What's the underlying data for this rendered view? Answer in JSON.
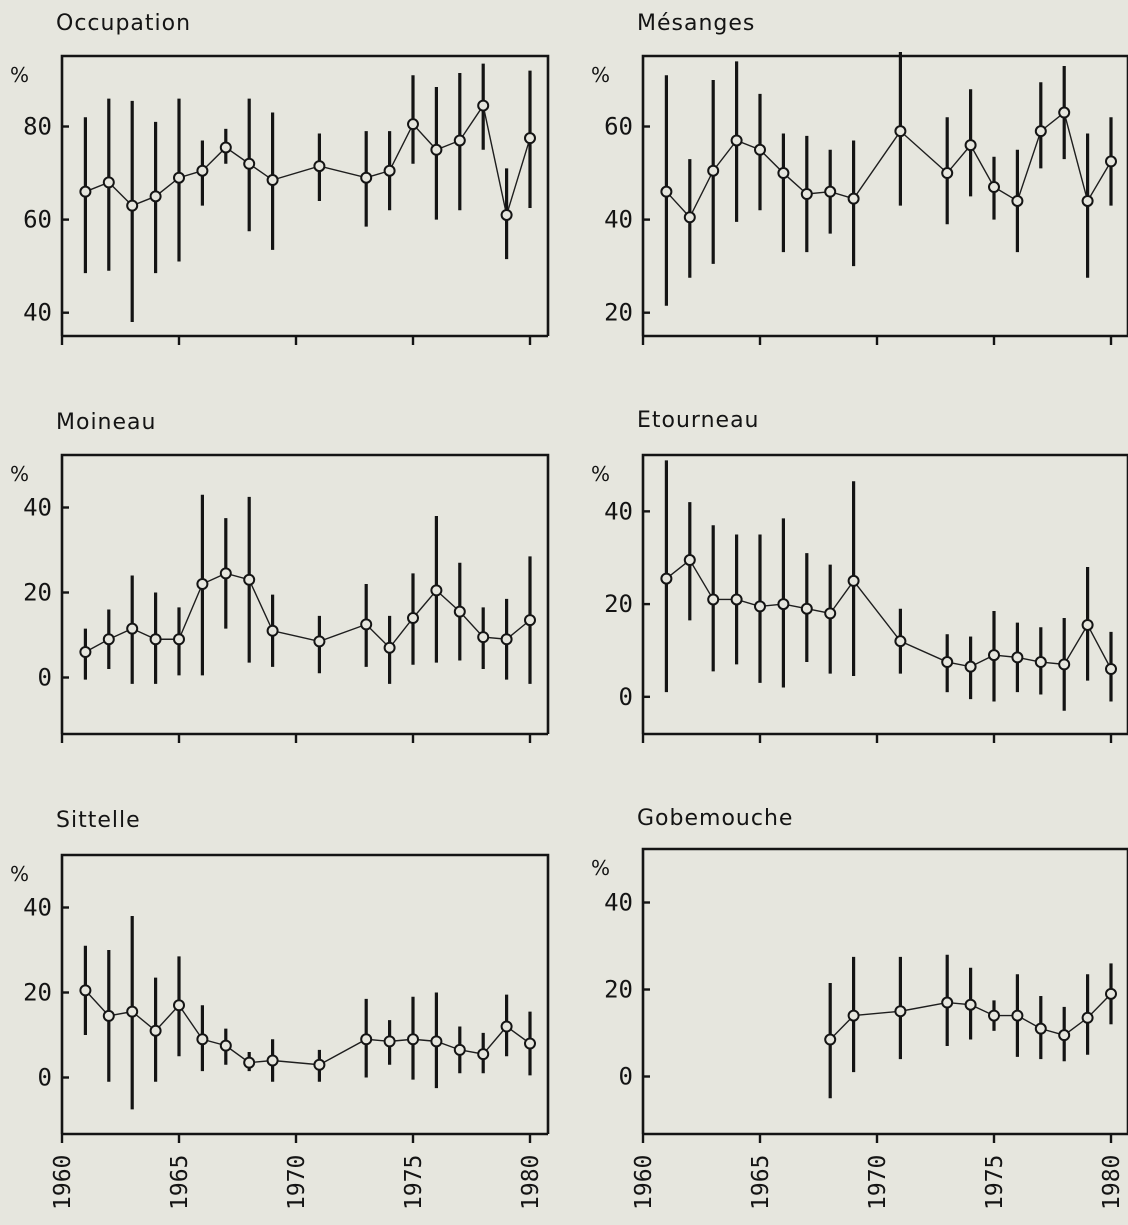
{
  "colors": {
    "background": "#e6e6de",
    "ink": "#141414"
  },
  "x_axis": {
    "range": [
      1960,
      1980
    ],
    "tick_labels": [
      "1960",
      "1965",
      "1970",
      "1975",
      "1980"
    ]
  },
  "chart_data": [
    {
      "type": "line",
      "title": "Occupation",
      "unit": "%",
      "ylim": [
        38,
        93
      ],
      "ytick_labels": [
        "40",
        "60",
        "80"
      ],
      "x": [
        1961,
        1962,
        1963,
        1964,
        1965,
        1966,
        1967,
        1968,
        1969,
        1971,
        1973,
        1974,
        1975,
        1976,
        1977,
        1978,
        1979,
        1980
      ],
      "y": [
        66,
        68,
        63,
        65,
        69,
        70.5,
        75.5,
        72,
        68.5,
        71.5,
        69,
        70.5,
        80.5,
        75,
        77,
        84.5,
        61,
        77.5
      ],
      "err_low": [
        48.5,
        49,
        38,
        48.5,
        51,
        63,
        72,
        57.5,
        53.5,
        64,
        58.5,
        62,
        72,
        60,
        62,
        75,
        51.5,
        62.5
      ],
      "err_high": [
        82,
        86,
        85.5,
        81,
        86,
        77,
        79.5,
        86,
        83,
        78.5,
        79,
        79,
        91,
        88.5,
        91.5,
        93.5,
        71,
        92
      ]
    },
    {
      "type": "line",
      "title": "Mésanges",
      "unit": "%",
      "ylim": [
        18,
        73
      ],
      "ytick_labels": [
        "20",
        "40",
        "60"
      ],
      "x": [
        1961,
        1962,
        1963,
        1964,
        1965,
        1966,
        1967,
        1968,
        1969,
        1971,
        1973,
        1974,
        1975,
        1976,
        1977,
        1978,
        1979,
        1980
      ],
      "y": [
        46,
        40.5,
        50.5,
        57,
        55,
        50,
        45.5,
        46,
        44.5,
        59,
        50,
        56,
        47,
        44,
        59,
        63,
        44,
        52.5
      ],
      "err_low": [
        21.5,
        27.5,
        30.5,
        39.5,
        42,
        33,
        33,
        37,
        30,
        43,
        39,
        45,
        40,
        33,
        51,
        53,
        27.5,
        43
      ],
      "err_high": [
        71,
        53,
        70,
        74,
        67,
        58.5,
        58,
        55,
        57,
        76,
        62,
        68,
        53.5,
        55,
        69.5,
        73,
        58.5,
        62
      ]
    },
    {
      "type": "line",
      "title": "Moineau",
      "unit": "%",
      "ylim": [
        -10,
        50
      ],
      "ytick_labels": [
        "0",
        "20",
        "40"
      ],
      "x": [
        1961,
        1962,
        1963,
        1964,
        1965,
        1966,
        1967,
        1968,
        1969,
        1971,
        1973,
        1974,
        1975,
        1976,
        1977,
        1978,
        1979,
        1980
      ],
      "y": [
        6,
        9,
        11.5,
        9,
        9,
        22,
        24.5,
        23,
        11,
        8.5,
        12.5,
        7,
        14,
        20.5,
        15.5,
        9.5,
        9,
        13.5
      ],
      "err_low": [
        -0.5,
        2,
        -1.5,
        -1.5,
        0.5,
        0.5,
        11.5,
        3.5,
        2.5,
        1,
        2.5,
        -1.5,
        3,
        3.5,
        4,
        2,
        -0.5,
        -1.5
      ],
      "err_high": [
        11.5,
        16,
        24,
        20,
        16.5,
        43,
        37.5,
        42.5,
        19.5,
        14.5,
        22,
        14.5,
        24.5,
        38,
        27,
        16.5,
        18.5,
        28.5
      ]
    },
    {
      "type": "line",
      "title": "Etourneau",
      "unit": "%",
      "ylim": [
        -5,
        50
      ],
      "ytick_labels": [
        "0",
        "20",
        "40"
      ],
      "x": [
        1961,
        1962,
        1963,
        1964,
        1965,
        1966,
        1967,
        1968,
        1969,
        1971,
        1973,
        1974,
        1975,
        1976,
        1977,
        1978,
        1979,
        1980
      ],
      "y": [
        25.5,
        29.5,
        21,
        21,
        19.5,
        20,
        19,
        18,
        25,
        12,
        7.5,
        6.5,
        9,
        8.5,
        7.5,
        7,
        15.5,
        6
      ],
      "err_low": [
        1,
        16.5,
        5.5,
        7,
        3,
        2,
        7.5,
        5,
        4.5,
        5,
        1,
        -0.5,
        -1,
        1,
        0.5,
        -3,
        3.5,
        -1
      ],
      "err_high": [
        51,
        42,
        37,
        35,
        35,
        38.5,
        31,
        28.5,
        46.5,
        19,
        13.5,
        13,
        18.5,
        16,
        15,
        17,
        28,
        14
      ]
    },
    {
      "type": "line",
      "title": "Sittelle",
      "unit": "%",
      "ylim": [
        -10,
        50
      ],
      "ytick_labels": [
        "0",
        "20",
        "40"
      ],
      "x": [
        1961,
        1962,
        1963,
        1964,
        1965,
        1966,
        1967,
        1968,
        1969,
        1971,
        1973,
        1974,
        1975,
        1976,
        1977,
        1978,
        1979,
        1980
      ],
      "y": [
        20.5,
        14.5,
        15.5,
        11,
        17,
        9,
        7.5,
        3.5,
        4,
        3,
        9,
        8.5,
        9,
        8.5,
        6.5,
        5.5,
        12,
        8
      ],
      "err_low": [
        10,
        -1,
        -7.5,
        -1,
        5,
        1.5,
        3,
        1.5,
        -1,
        -1,
        0,
        3,
        -0.5,
        -2.5,
        1,
        1,
        5,
        0.5
      ],
      "err_high": [
        31,
        30,
        38,
        23.5,
        28.5,
        17,
        11.5,
        6,
        9,
        6.5,
        18.5,
        13.5,
        19,
        20,
        12,
        10.5,
        19.5,
        15.5
      ]
    },
    {
      "type": "line",
      "title": "Gobemouche",
      "unit": "%",
      "ylim": [
        -10,
        50
      ],
      "ytick_labels": [
        "0",
        "20",
        "40"
      ],
      "x": [
        1968,
        1969,
        1971,
        1973,
        1974,
        1975,
        1976,
        1977,
        1978,
        1979,
        1980
      ],
      "y": [
        8.5,
        14,
        15,
        17,
        16.5,
        14,
        14,
        11,
        9.5,
        13.5,
        19
      ],
      "err_low": [
        -5,
        1,
        4,
        7,
        8.5,
        10.5,
        4.5,
        4,
        3.5,
        5,
        12
      ],
      "err_high": [
        21.5,
        27.5,
        27.5,
        28,
        25,
        17.5,
        23.5,
        18.5,
        16,
        23.5,
        26
      ]
    }
  ]
}
